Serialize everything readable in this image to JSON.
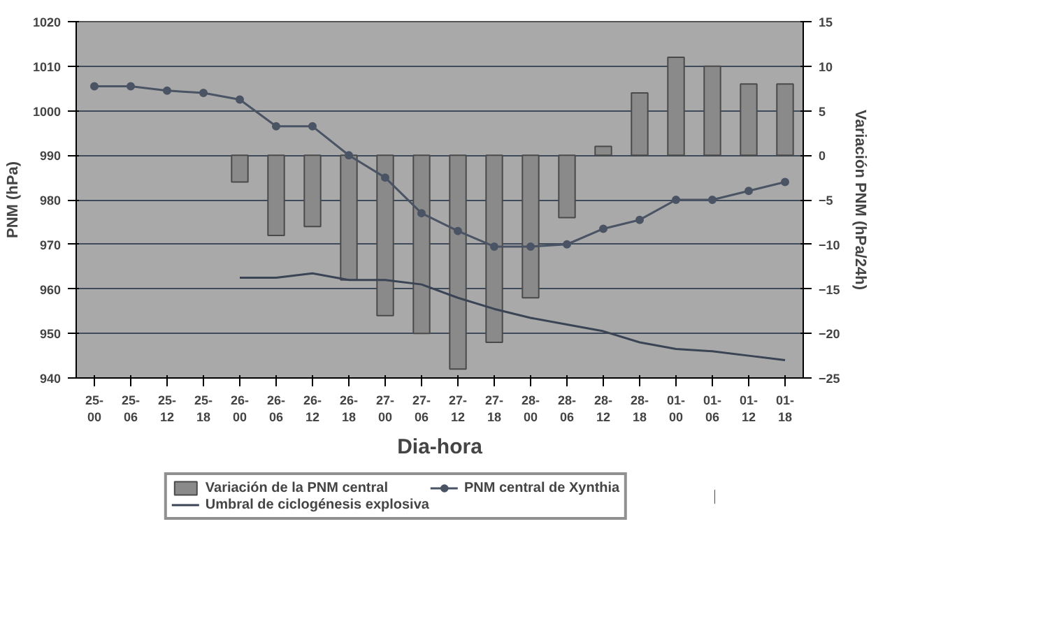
{
  "chart_data": {
    "type": "bar",
    "xlabel": "Dia-hora",
    "ylabel": "PNM (hPa)",
    "y2label": "Variación PNM (hPa/24h)",
    "categories": [
      "25-\n00",
      "25-\n06",
      "25-\n12",
      "25-\n18",
      "26-\n00",
      "26-\n06",
      "26-\n12",
      "26-\n18",
      "27-\n00",
      "27-\n06",
      "27-\n12",
      "27-\n18",
      "28-\n00",
      "28-\n06",
      "28-\n12",
      "28-\n18",
      "01-\n00",
      "01-\n06",
      "01-\n12",
      "01-\n18"
    ],
    "series": [
      {
        "name": "Variación de la PNM central",
        "axis": "y2",
        "color": "#8a8a8a",
        "values": [
          null,
          null,
          null,
          null,
          -3,
          -9,
          -8,
          -14,
          -18,
          -20,
          -24,
          -21,
          -16,
          -7,
          1,
          7,
          11,
          10,
          8,
          8
        ]
      },
      {
        "name": "Umbral de ciclogénesis explosiva",
        "type": "line",
        "color": "#3a4454",
        "marker": "none",
        "values": [
          null,
          null,
          null,
          null,
          962.5,
          962.5,
          963.5,
          962,
          962,
          961,
          958,
          955.5,
          953.5,
          952,
          950.5,
          948,
          946.5,
          946,
          945,
          944
        ]
      },
      {
        "name": "PNM central de Xynthia",
        "type": "line",
        "color": "#4a5464",
        "marker": "circle",
        "values": [
          1005.5,
          1005.5,
          1004.5,
          1004,
          1002.5,
          996.5,
          996.5,
          990,
          985,
          977,
          973,
          969.5,
          969.5,
          970,
          973.5,
          975.5,
          980,
          980,
          982,
          984
        ]
      }
    ],
    "ylim": [
      940,
      1020
    ],
    "yticks": [
      940,
      950,
      960,
      970,
      980,
      990,
      1000,
      1010,
      1020
    ],
    "y2lim": [
      -25,
      15
    ],
    "y2ticks": [
      -25,
      -20,
      -15,
      -10,
      -5,
      0,
      5,
      10,
      15
    ],
    "grid": "y",
    "legend": "bottom",
    "line_style": "solid"
  }
}
